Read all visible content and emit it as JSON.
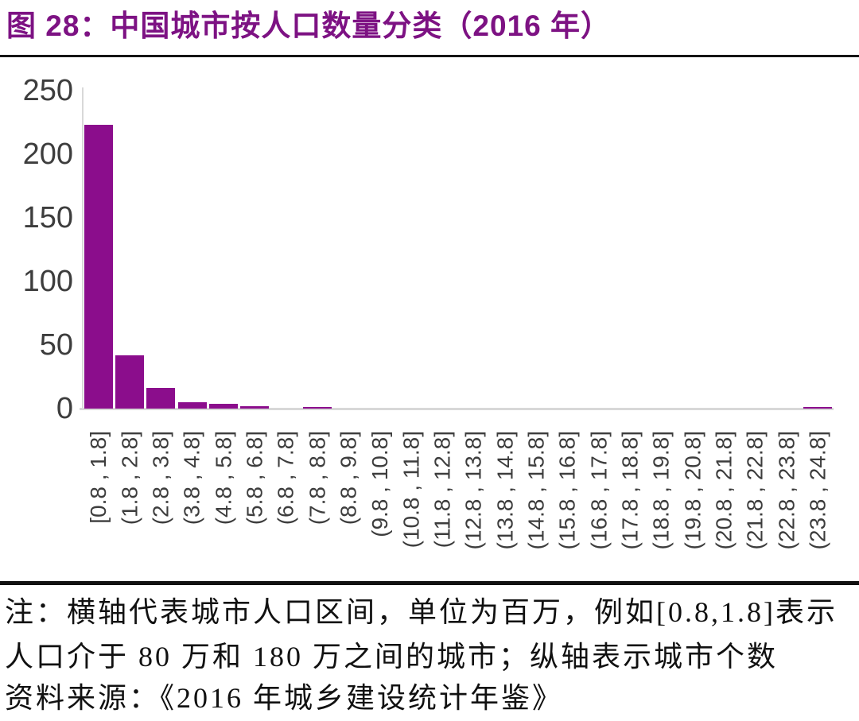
{
  "figure": {
    "title": "图 28：中国城市按人口数量分类（2016 年）"
  },
  "chart_data": {
    "type": "bar",
    "title": "中国城市按人口数量分类（2016 年）",
    "categories": [
      "[0.8 , 1.8]",
      "(1.8 , 2.8]",
      "(2.8 , 3.8]",
      "(3.8 , 4.8]",
      "(4.8 , 5.8]",
      "(5.8 , 6.8]",
      "(6.8 , 7.8]",
      "(7.8 , 8.8]",
      "(8.8 , 9.8]",
      "(9.8 , 10.8]",
      "(10.8 , 11.8]",
      "(11.8 , 12.8]",
      "(12.8 , 13.8]",
      "(13.8 , 14.8]",
      "(14.8 , 15.8]",
      "(15.8 , 16.8]",
      "(16.8 , 17.8]",
      "(17.8 , 18.8]",
      "(18.8 , 19.8]",
      "(19.8 , 20.8]",
      "(20.8 , 21.8]",
      "(21.8 , 22.8]",
      "(22.8 , 23.8]",
      "(23.8 , 24.8]"
    ],
    "values": [
      223,
      42,
      16,
      5,
      4,
      2,
      0,
      1,
      0,
      0,
      0,
      0,
      0,
      0,
      0,
      0,
      0,
      0,
      0,
      0,
      0,
      0,
      0,
      1
    ],
    "xlabel": "",
    "ylabel": "",
    "ylim": [
      0,
      250
    ],
    "y_ticks": [
      0,
      50,
      100,
      150,
      200,
      250
    ],
    "grid": false,
    "legend": "none"
  },
  "notes": {
    "note": "注：横轴代表城市人口区间，单位为百万，例如[0.8,1.8]表示人口介于 80 万和 180 万之间的城市；纵轴表示城市个数",
    "source": "资料来源：《2016 年城乡建设统计年鉴》"
  },
  "colors": {
    "title": "#7d1283",
    "bar": "#8b0d8c",
    "axis_line": "#d8d8d8",
    "tick_label": "#3d3d3d",
    "footnote_text": "#111111"
  }
}
